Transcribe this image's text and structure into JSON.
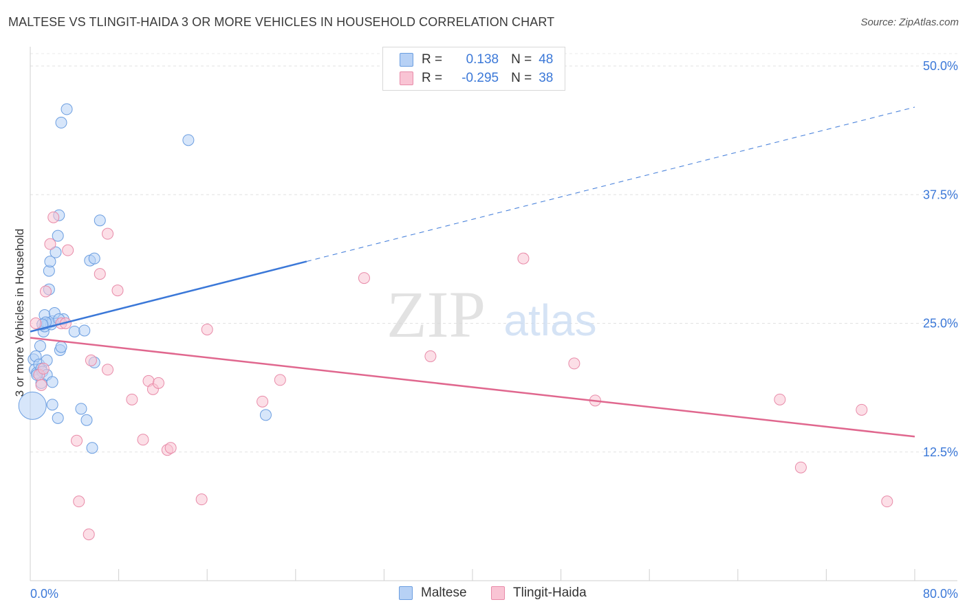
{
  "title": "MALTESE VS TLINGIT-HAIDA 3 OR MORE VEHICLES IN HOUSEHOLD CORRELATION CHART",
  "source": "Source: ZipAtlas.com",
  "watermark": {
    "zip": "ZIP",
    "atlas": "atlas"
  },
  "legend": {
    "r_label": "R =",
    "n_label": "N =",
    "series": [
      {
        "name": "Maltese",
        "r": "0.138",
        "n": "48",
        "fill": "#b7d1f5",
        "stroke": "#6a9de0"
      },
      {
        "name": "Tlingit-Haida",
        "r": "-0.295",
        "n": "38",
        "fill": "#f9c4d4",
        "stroke": "#e88aa8"
      }
    ]
  },
  "chart_data": {
    "type": "scatter",
    "title": "MALTESE VS TLINGIT-HAIDA 3 OR MORE VEHICLES IN HOUSEHOLD CORRELATION CHART",
    "xlabel": "",
    "ylabel": "3 or more Vehicles in Household",
    "xlim": [
      0,
      80
    ],
    "ylim": [
      0,
      50
    ],
    "x_tick_labels": [
      "0.0%",
      "80.0%"
    ],
    "y_tick_labels": [
      "12.5%",
      "25.0%",
      "37.5%",
      "50.0%"
    ],
    "y_ticks": [
      12.5,
      25,
      37.5,
      50
    ],
    "series": [
      {
        "name": "Maltese",
        "color": "#3b78d8",
        "fill": "#b7d1f5",
        "points": [
          [
            0.2,
            17.0
          ],
          [
            0.3,
            21.5
          ],
          [
            0.4,
            20.5
          ],
          [
            0.5,
            21.8
          ],
          [
            0.6,
            20.2
          ],
          [
            0.8,
            21.0
          ],
          [
            0.9,
            22.8
          ],
          [
            1.0,
            20.6
          ],
          [
            1.0,
            19.2
          ],
          [
            1.1,
            20.3
          ],
          [
            1.2,
            24.2
          ],
          [
            1.3,
            25.8
          ],
          [
            1.3,
            24.7
          ],
          [
            1.5,
            21.4
          ],
          [
            1.5,
            20.0
          ],
          [
            1.6,
            25.0
          ],
          [
            1.7,
            28.3
          ],
          [
            1.7,
            30.1
          ],
          [
            1.8,
            31.0
          ],
          [
            1.9,
            24.9
          ],
          [
            2.0,
            25.2
          ],
          [
            2.0,
            19.3
          ],
          [
            2.0,
            17.1
          ],
          [
            2.2,
            26.0
          ],
          [
            2.3,
            31.9
          ],
          [
            2.5,
            33.5
          ],
          [
            2.5,
            15.8
          ],
          [
            2.6,
            35.5
          ],
          [
            2.7,
            22.4
          ],
          [
            2.8,
            44.5
          ],
          [
            2.8,
            22.7
          ],
          [
            3.0,
            25.4
          ],
          [
            3.3,
            45.8
          ],
          [
            4.0,
            24.2
          ],
          [
            4.6,
            16.7
          ],
          [
            4.9,
            24.3
          ],
          [
            5.1,
            15.6
          ],
          [
            5.4,
            31.1
          ],
          [
            5.6,
            12.9
          ],
          [
            5.8,
            31.3
          ],
          [
            5.8,
            21.2
          ],
          [
            6.3,
            35.0
          ],
          [
            14.3,
            42.8
          ],
          [
            21.3,
            16.1
          ],
          [
            1.4,
            25.1
          ],
          [
            0.6,
            20.0
          ],
          [
            1.1,
            24.9
          ],
          [
            2.6,
            25.4
          ]
        ]
      },
      {
        "name": "Tlingit-Haida",
        "color": "#e0678e",
        "fill": "#f9c4d4",
        "points": [
          [
            0.5,
            25.0
          ],
          [
            0.8,
            20.0
          ],
          [
            1.0,
            19.0
          ],
          [
            1.2,
            20.6
          ],
          [
            1.4,
            28.1
          ],
          [
            1.8,
            32.7
          ],
          [
            2.1,
            35.3
          ],
          [
            2.8,
            25.0
          ],
          [
            3.2,
            25.0
          ],
          [
            3.4,
            32.1
          ],
          [
            4.2,
            13.6
          ],
          [
            4.4,
            7.7
          ],
          [
            5.3,
            4.5
          ],
          [
            5.5,
            21.4
          ],
          [
            6.3,
            29.8
          ],
          [
            7.0,
            20.5
          ],
          [
            7.0,
            33.7
          ],
          [
            7.9,
            28.2
          ],
          [
            9.2,
            17.6
          ],
          [
            10.2,
            13.7
          ],
          [
            10.7,
            19.4
          ],
          [
            11.1,
            18.6
          ],
          [
            11.6,
            19.2
          ],
          [
            12.4,
            12.7
          ],
          [
            12.7,
            12.9
          ],
          [
            15.5,
            7.9
          ],
          [
            16.0,
            24.4
          ],
          [
            21.0,
            17.4
          ],
          [
            22.6,
            19.5
          ],
          [
            30.2,
            29.4
          ],
          [
            36.2,
            21.8
          ],
          [
            44.6,
            31.3
          ],
          [
            49.2,
            21.1
          ],
          [
            51.1,
            17.5
          ],
          [
            67.8,
            17.6
          ],
          [
            69.7,
            11.0
          ],
          [
            75.2,
            16.6
          ],
          [
            77.5,
            7.7
          ]
        ]
      }
    ],
    "trendlines": [
      {
        "series": "Maltese",
        "x_start": 0,
        "y_start": 24.2,
        "x_solid_end": 25,
        "x_end": 80,
        "y_end": 46.0
      },
      {
        "series": "Tlingit-Haida",
        "x_start": 0,
        "y_start": 23.6,
        "x_end": 80,
        "y_end": 14.0
      }
    ]
  }
}
